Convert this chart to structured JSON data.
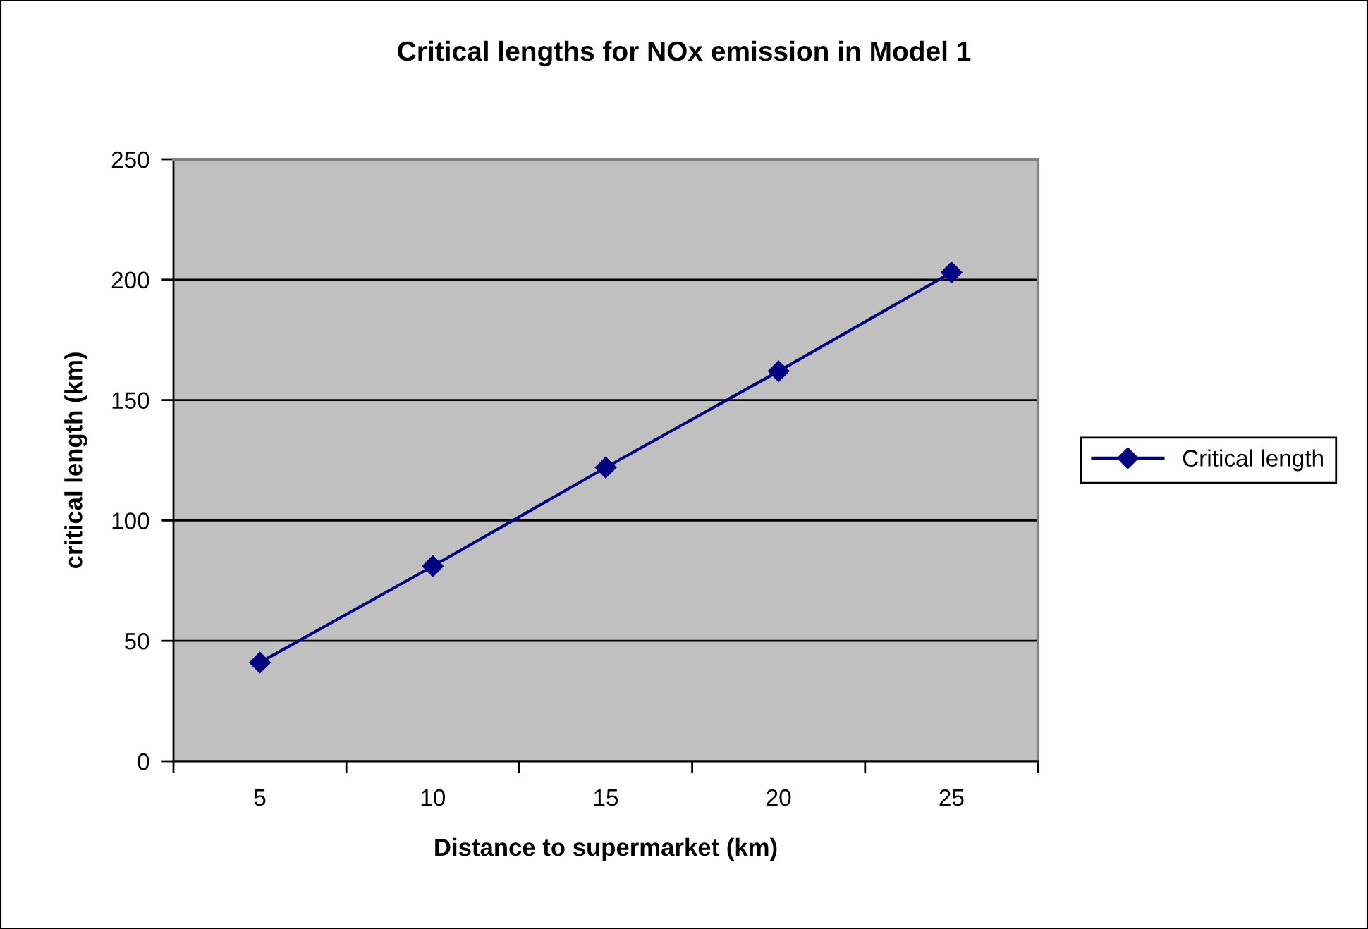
{
  "chart_data": {
    "type": "line",
    "title": "Critical lengths for NOx emission in Model 1",
    "xlabel": "Distance to supermarket (km)",
    "ylabel": "critical length (km)",
    "categories": [
      "5",
      "10",
      "15",
      "20",
      "25"
    ],
    "series": [
      {
        "name": "Critical length",
        "color": "#000080",
        "values": [
          41,
          81,
          122,
          162,
          203
        ]
      }
    ],
    "ylim": [
      0,
      250
    ],
    "yticks": [
      0,
      50,
      100,
      150,
      200,
      250
    ],
    "grid": "y",
    "legend": "right",
    "marker": "diamond",
    "line_style": "solid"
  }
}
